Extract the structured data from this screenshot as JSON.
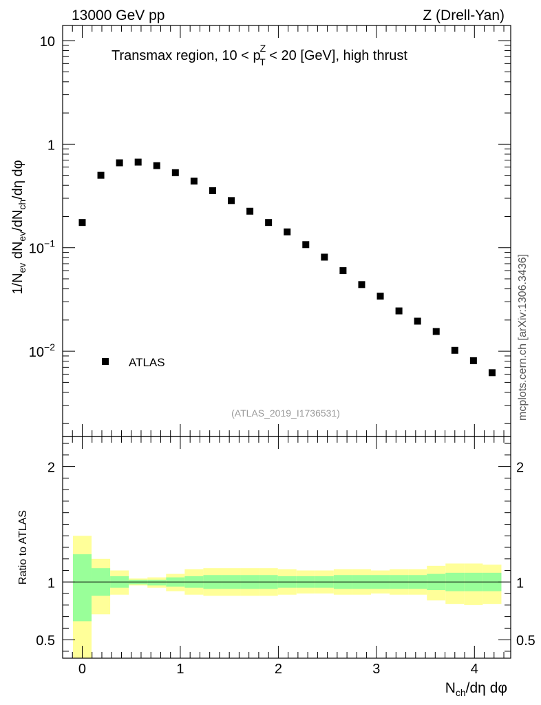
{
  "header": {
    "left": "13000 GeV pp",
    "right": "Z (Drell-Yan)"
  },
  "side_label": "mcplots.cern.ch [arXiv:1306.3436]",
  "chart_data": [
    {
      "panel": "main",
      "type": "scatter",
      "title_parts": {
        "pre": "Transmax region, 10 < p",
        "sup": "Z",
        "sub": "T",
        "post": " < 20 [GeV], high thrust"
      },
      "ylabel_parts": [
        "1/N",
        "ev",
        " dN",
        "ev",
        "/dN",
        "ch",
        "/dη dφ"
      ],
      "yscale": "log",
      "ylim": [
        0.0015,
        14
      ],
      "xlim": [
        -0.2,
        4.37
      ],
      "yticks": [
        {
          "value": 10,
          "base": "10",
          "exp": ""
        },
        {
          "value": 1,
          "base": "1",
          "exp": ""
        },
        {
          "value": 0.1,
          "base": "10",
          "exp": "−1"
        },
        {
          "value": 0.01,
          "base": "10",
          "exp": "−2"
        }
      ],
      "legend": {
        "label": "ATLAS",
        "position": "bottom-left"
      },
      "watermark": "(ATLAS_2019_I1736531)",
      "series": [
        {
          "name": "ATLAS",
          "x": [
            0,
            0.19,
            0.38,
            0.57,
            0.76,
            0.95,
            1.14,
            1.33,
            1.52,
            1.71,
            1.9,
            2.09,
            2.28,
            2.47,
            2.66,
            2.85,
            3.04,
            3.23,
            3.42,
            3.61,
            3.8,
            3.99,
            4.18
          ],
          "y": [
            0.175,
            0.5,
            0.66,
            0.67,
            0.62,
            0.53,
            0.44,
            0.355,
            0.285,
            0.225,
            0.175,
            0.142,
            0.107,
            0.081,
            0.06,
            0.044,
            0.034,
            0.0245,
            0.0195,
            0.0155,
            0.0102,
            0.0081,
            0.0062
          ]
        }
      ]
    },
    {
      "panel": "ratio",
      "type": "area",
      "ylabel": "Ratio to ATLAS",
      "ylim": [
        0.34,
        2.26
      ],
      "xlim": [
        -0.2,
        4.37
      ],
      "xlabel_parts": [
        "N",
        "ch",
        "/dη dφ"
      ],
      "xticks": [
        0,
        1,
        2,
        3,
        4
      ],
      "yticks": [
        {
          "value": 2,
          "label": "2"
        },
        {
          "value": 1,
          "label": "1"
        },
        {
          "value": 0.5,
          "label": "0.5"
        }
      ],
      "colors": {
        "stat": "#99ff99",
        "total": "#ffff99",
        "line": "#000000"
      },
      "bins": [
        {
          "lo": -0.095,
          "hi": 0.095,
          "stat_lo": 0.66,
          "stat_hi": 1.24,
          "tot_lo": 0.2,
          "tot_hi": 1.4
        },
        {
          "lo": 0.095,
          "hi": 0.285,
          "stat_lo": 0.88,
          "stat_hi": 1.12,
          "tot_lo": 0.72,
          "tot_hi": 1.2
        },
        {
          "lo": 0.285,
          "hi": 0.475,
          "stat_lo": 0.95,
          "stat_hi": 1.05,
          "tot_lo": 0.89,
          "tot_hi": 1.1
        },
        {
          "lo": 0.475,
          "hi": 0.665,
          "stat_lo": 0.98,
          "stat_hi": 1.02,
          "tot_lo": 0.97,
          "tot_hi": 1.03
        },
        {
          "lo": 0.665,
          "hi": 0.855,
          "stat_lo": 0.97,
          "stat_hi": 1.02,
          "tot_lo": 0.95,
          "tot_hi": 1.04
        },
        {
          "lo": 0.855,
          "hi": 1.045,
          "stat_lo": 0.96,
          "stat_hi": 1.04,
          "tot_lo": 0.92,
          "tot_hi": 1.07
        },
        {
          "lo": 1.045,
          "hi": 1.235,
          "stat_lo": 0.95,
          "stat_hi": 1.05,
          "tot_lo": 0.89,
          "tot_hi": 1.11
        },
        {
          "lo": 1.235,
          "hi": 1.425,
          "stat_lo": 0.94,
          "stat_hi": 1.06,
          "tot_lo": 0.88,
          "tot_hi": 1.12
        },
        {
          "lo": 1.425,
          "hi": 1.615,
          "stat_lo": 0.94,
          "stat_hi": 1.06,
          "tot_lo": 0.88,
          "tot_hi": 1.12
        },
        {
          "lo": 1.615,
          "hi": 1.805,
          "stat_lo": 0.94,
          "stat_hi": 1.06,
          "tot_lo": 0.88,
          "tot_hi": 1.12
        },
        {
          "lo": 1.805,
          "hi": 1.995,
          "stat_lo": 0.94,
          "stat_hi": 1.06,
          "tot_lo": 0.88,
          "tot_hi": 1.12
        },
        {
          "lo": 1.995,
          "hi": 2.185,
          "stat_lo": 0.95,
          "stat_hi": 1.05,
          "tot_lo": 0.89,
          "tot_hi": 1.11
        },
        {
          "lo": 2.185,
          "hi": 2.375,
          "stat_lo": 0.95,
          "stat_hi": 1.05,
          "tot_lo": 0.9,
          "tot_hi": 1.1
        },
        {
          "lo": 2.375,
          "hi": 2.565,
          "stat_lo": 0.95,
          "stat_hi": 1.05,
          "tot_lo": 0.9,
          "tot_hi": 1.1
        },
        {
          "lo": 2.565,
          "hi": 2.755,
          "stat_lo": 0.94,
          "stat_hi": 1.06,
          "tot_lo": 0.89,
          "tot_hi": 1.11
        },
        {
          "lo": 2.755,
          "hi": 2.945,
          "stat_lo": 0.94,
          "stat_hi": 1.06,
          "tot_lo": 0.89,
          "tot_hi": 1.11
        },
        {
          "lo": 2.945,
          "hi": 3.135,
          "stat_lo": 0.94,
          "stat_hi": 1.06,
          "tot_lo": 0.9,
          "tot_hi": 1.1
        },
        {
          "lo": 3.135,
          "hi": 3.325,
          "stat_lo": 0.94,
          "stat_hi": 1.06,
          "tot_lo": 0.89,
          "tot_hi": 1.11
        },
        {
          "lo": 3.325,
          "hi": 3.515,
          "stat_lo": 0.94,
          "stat_hi": 1.06,
          "tot_lo": 0.89,
          "tot_hi": 1.11
        },
        {
          "lo": 3.515,
          "hi": 3.705,
          "stat_lo": 0.93,
          "stat_hi": 1.07,
          "tot_lo": 0.84,
          "tot_hi": 1.14
        },
        {
          "lo": 3.705,
          "hi": 3.895,
          "stat_lo": 0.92,
          "stat_hi": 1.08,
          "tot_lo": 0.81,
          "tot_hi": 1.16
        },
        {
          "lo": 3.895,
          "hi": 4.085,
          "stat_lo": 0.92,
          "stat_hi": 1.08,
          "tot_lo": 0.8,
          "tot_hi": 1.16
        },
        {
          "lo": 4.085,
          "hi": 4.275,
          "stat_lo": 0.92,
          "stat_hi": 1.08,
          "tot_lo": 0.81,
          "tot_hi": 1.15
        }
      ]
    }
  ]
}
